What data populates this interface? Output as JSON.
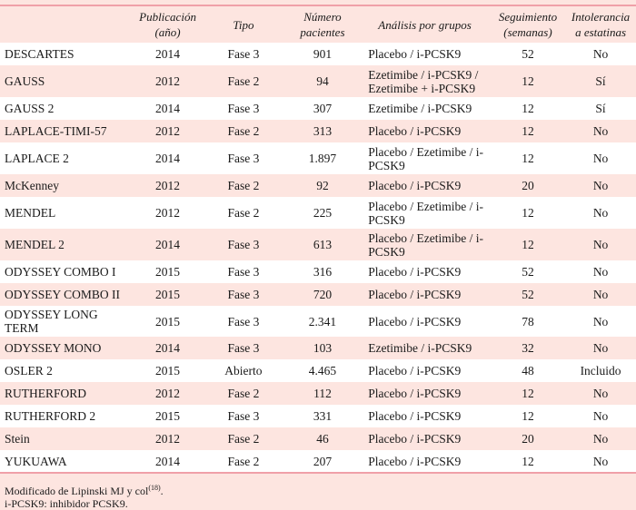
{
  "headers": [
    "",
    "Publicación (año)",
    "Tipo",
    "Número pacientes",
    "Análisis por grupos",
    "Seguimiento (semanas)",
    "Intolerancia a estatinas"
  ],
  "rows": [
    [
      "DESCARTES",
      "2014",
      "Fase 3",
      "901",
      "Placebo / i-PCSK9",
      "52",
      "No"
    ],
    [
      "GAUSS",
      "2012",
      "Fase 2",
      "94",
      "Ezetimibe / i-PCSK9 / Ezetimibe + i-PCSK9",
      "12",
      "Sí"
    ],
    [
      "GAUSS 2",
      "2014",
      "Fase 3",
      "307",
      "Ezetimibe / i-PCSK9",
      "12",
      "Sí"
    ],
    [
      "LAPLACE-TIMI-57",
      "2012",
      "Fase 2",
      "313",
      "Placebo / i-PCSK9",
      "12",
      "No"
    ],
    [
      "LAPLACE 2",
      "2014",
      "Fase 3",
      "1.897",
      "Placebo / Ezetimibe / i-PCSK9",
      "12",
      "No"
    ],
    [
      "McKenney",
      "2012",
      "Fase 2",
      "92",
      "Placebo / i-PCSK9",
      "20",
      "No"
    ],
    [
      "MENDEL",
      "2012",
      "Fase 2",
      "225",
      "Placebo / Ezetimibe / i-PCSK9",
      "12",
      "No"
    ],
    [
      "MENDEL 2",
      "2014",
      "Fase 3",
      "613",
      "Placebo / Ezetimibe / i-PCSK9",
      "12",
      "No"
    ],
    [
      "ODYSSEY COMBO I",
      "2015",
      "Fase 3",
      "316",
      "Placebo / i-PCSK9",
      "52",
      "No"
    ],
    [
      "ODYSSEY COMBO II",
      "2015",
      "Fase 3",
      "720",
      "Placebo / i-PCSK9",
      "52",
      "No"
    ],
    [
      "ODYSSEY LONG TERM",
      "2015",
      "Fase 3",
      "2.341",
      "Placebo / i-PCSK9",
      "78",
      "No"
    ],
    [
      "ODYSSEY MONO",
      "2014",
      "Fase 3",
      "103",
      "Ezetimibe / i-PCSK9",
      "32",
      "No"
    ],
    [
      "OSLER 2",
      "2015",
      "Abierto",
      "4.465",
      "Placebo / i-PCSK9",
      "48",
      "Incluido"
    ],
    [
      "RUTHERFORD",
      "2012",
      "Fase 2",
      "112",
      "Placebo / i-PCSK9",
      "12",
      "No"
    ],
    [
      "RUTHERFORD 2",
      "2015",
      "Fase 3",
      "331",
      "Placebo / i-PCSK9",
      "12",
      "No"
    ],
    [
      "Stein",
      "2012",
      "Fase 2",
      "46",
      "Placebo / i-PCSK9",
      "20",
      "No"
    ],
    [
      "YUKUAWA",
      "2014",
      "Fase 2",
      "207",
      "Placebo / i-PCSK9",
      "12",
      "No"
    ]
  ],
  "notes": {
    "source": "Modificado de Lipinski MJ y col",
    "source_ref": "(18)",
    "source_end": ".",
    "abbrev": "i-PCSK9: inhibidor PCSK9."
  },
  "colors": {
    "background": "#fde5e0",
    "row_alt": "#ffffff",
    "rule": "#f0a0a8"
  }
}
